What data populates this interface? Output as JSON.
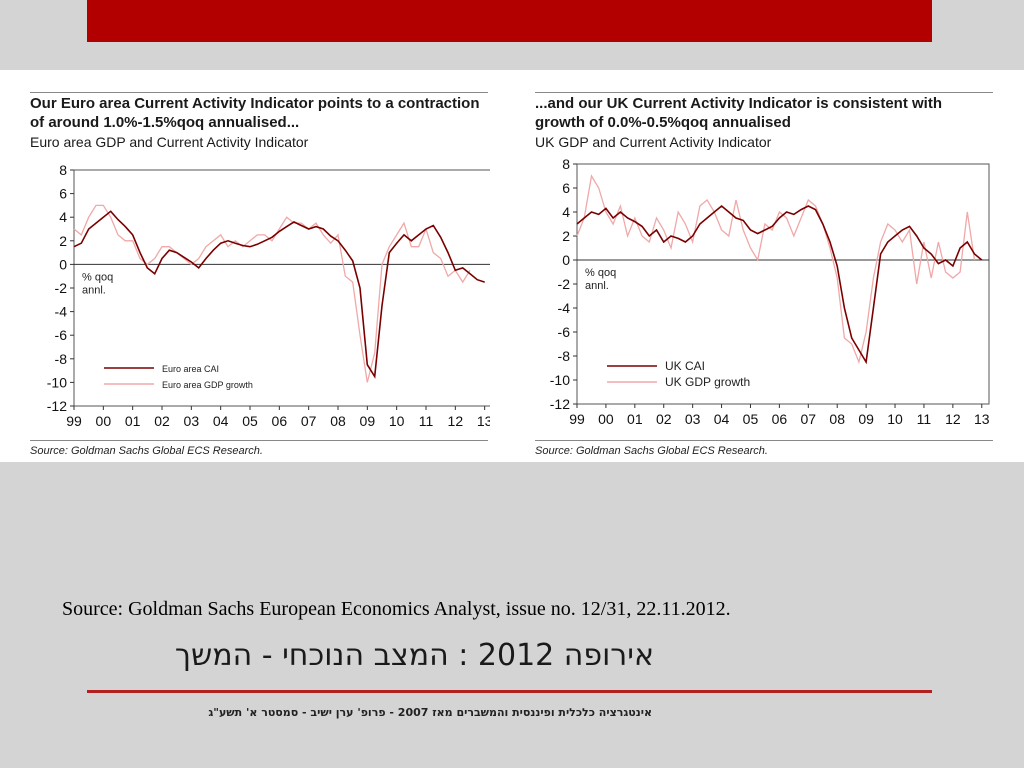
{
  "slide": {
    "source_text": "Source: Goldman Sachs European Economics Analyst, issue no. 12/31, 22.11.2012.",
    "title": "אירופה 2012 : המצב הנוכחי - המשך",
    "footer": "אינטגרציה כלכלית ופיננסית והמשברים מאז 2007 - פרופ' ערן ישיב - סמסטר א' תשע\"ג",
    "colors": {
      "top_bar": "#b20000",
      "rule": "#b22020",
      "cai_line": "#7a0000",
      "gdp_line": "#f0a8a8"
    }
  },
  "chart_data": [
    {
      "type": "line",
      "title": "Our Euro area Current Activity Indicator points to a contraction of around 1.0%-1.5%qoq annualised...",
      "subtitle": "Euro area GDP and Current Activity Indicator",
      "ylabel": "% qoq annl.",
      "xlabel": "",
      "ylim": [
        -12,
        8
      ],
      "yticks": [
        8,
        6,
        4,
        2,
        0,
        -2,
        -4,
        -6,
        -8,
        -10,
        -12
      ],
      "x_ticks": [
        "99",
        "00",
        "01",
        "02",
        "03",
        "04",
        "05",
        "06",
        "07",
        "08",
        "09",
        "10",
        "11",
        "12",
        "13"
      ],
      "source": "Source: Goldman Sachs Global ECS Research.",
      "legend_position": "bottom-left",
      "series": [
        {
          "name": "Euro area CAI",
          "x": [
            1999,
            1999.25,
            1999.5,
            1999.75,
            2000,
            2000.25,
            2000.5,
            2000.75,
            2001,
            2001.25,
            2001.5,
            2001.75,
            2002,
            2002.25,
            2002.5,
            2002.75,
            2003,
            2003.25,
            2003.5,
            2003.75,
            2004,
            2004.25,
            2004.5,
            2004.75,
            2005,
            2005.25,
            2005.5,
            2005.75,
            2006,
            2006.25,
            2006.5,
            2006.75,
            2007,
            2007.25,
            2007.5,
            2007.75,
            2008,
            2008.25,
            2008.5,
            2008.75,
            2009,
            2009.25,
            2009.5,
            2009.75,
            2010,
            2010.25,
            2010.5,
            2010.75,
            2011,
            2011.25,
            2011.5,
            2011.75,
            2012,
            2012.25,
            2012.5,
            2012.75,
            2013
          ],
          "y": [
            1.5,
            1.8,
            3.0,
            3.5,
            4.0,
            4.5,
            3.8,
            3.2,
            2.5,
            1.0,
            -0.3,
            -0.8,
            0.5,
            1.2,
            1.0,
            0.6,
            0.2,
            -0.3,
            0.5,
            1.2,
            1.8,
            2.0,
            1.8,
            1.6,
            1.5,
            1.7,
            2.0,
            2.3,
            2.8,
            3.2,
            3.6,
            3.3,
            3.0,
            3.2,
            3.0,
            2.4,
            2.0,
            1.2,
            0.3,
            -2.0,
            -8.5,
            -9.5,
            -3.5,
            1.0,
            1.8,
            2.5,
            2.0,
            2.5,
            3.0,
            3.3,
            2.3,
            1.0,
            -0.5,
            -0.3,
            -0.8,
            -1.3,
            -1.5
          ]
        },
        {
          "name": "Euro area GDP growth",
          "x": [
            1999,
            1999.25,
            1999.5,
            1999.75,
            2000,
            2000.25,
            2000.5,
            2000.75,
            2001,
            2001.25,
            2001.5,
            2001.75,
            2002,
            2002.25,
            2002.5,
            2002.75,
            2003,
            2003.25,
            2003.5,
            2003.75,
            2004,
            2004.25,
            2004.5,
            2004.75,
            2005,
            2005.25,
            2005.5,
            2005.75,
            2006,
            2006.25,
            2006.5,
            2006.75,
            2007,
            2007.25,
            2007.5,
            2007.75,
            2008,
            2008.25,
            2008.5,
            2008.75,
            2009,
            2009.25,
            2009.5,
            2009.75,
            2010,
            2010.25,
            2010.5,
            2010.75,
            2011,
            2011.25,
            2011.5,
            2011.75,
            2012,
            2012.25,
            2012.5
          ],
          "y": [
            3.0,
            2.5,
            4.0,
            5.0,
            5.0,
            4.0,
            2.5,
            2.0,
            2.0,
            0.5,
            0.0,
            0.5,
            1.5,
            1.5,
            1.0,
            0.5,
            0.0,
            0.5,
            1.5,
            2.0,
            2.5,
            1.5,
            2.0,
            1.5,
            2.0,
            2.5,
            2.5,
            2.0,
            3.0,
            4.0,
            3.5,
            3.5,
            3.0,
            3.5,
            2.5,
            1.8,
            2.5,
            -1.0,
            -1.5,
            -6.0,
            -10.0,
            -7.5,
            0.0,
            1.5,
            2.5,
            3.5,
            1.5,
            1.5,
            3.0,
            1.0,
            0.5,
            -1.0,
            -0.5,
            -1.5,
            -0.5
          ]
        }
      ]
    },
    {
      "type": "line",
      "title": "...and our UK Current Activity Indicator is consistent with growth of 0.0%-0.5%qoq annualised",
      "subtitle": "UK GDP and Current Activity Indicator",
      "ylabel": "% qoq annl.",
      "xlabel": "",
      "ylim": [
        -12,
        8
      ],
      "yticks": [
        8,
        6,
        4,
        2,
        0,
        -2,
        -4,
        -6,
        -8,
        -10,
        -12
      ],
      "x_ticks": [
        "99",
        "00",
        "01",
        "02",
        "03",
        "04",
        "05",
        "06",
        "07",
        "08",
        "09",
        "10",
        "11",
        "12",
        "13"
      ],
      "source": "Source: Goldman Sachs Global ECS Research.",
      "legend_position": "bottom-left",
      "series": [
        {
          "name": "UK CAI",
          "x": [
            1999,
            1999.25,
            1999.5,
            1999.75,
            2000,
            2000.25,
            2000.5,
            2000.75,
            2001,
            2001.25,
            2001.5,
            2001.75,
            2002,
            2002.25,
            2002.5,
            2002.75,
            2003,
            2003.25,
            2003.5,
            2003.75,
            2004,
            2004.25,
            2004.5,
            2004.75,
            2005,
            2005.25,
            2005.5,
            2005.75,
            2006,
            2006.25,
            2006.5,
            2006.75,
            2007,
            2007.25,
            2007.5,
            2007.75,
            2008,
            2008.25,
            2008.5,
            2008.75,
            2009,
            2009.25,
            2009.5,
            2009.75,
            2010,
            2010.25,
            2010.5,
            2010.75,
            2011,
            2011.25,
            2011.5,
            2011.75,
            2012,
            2012.25,
            2012.5,
            2012.75,
            2013
          ],
          "y": [
            3.0,
            3.5,
            4.0,
            3.8,
            4.3,
            3.5,
            4.0,
            3.5,
            3.2,
            2.8,
            2.0,
            2.5,
            1.5,
            2.0,
            1.8,
            1.5,
            2.0,
            3.0,
            3.5,
            4.0,
            4.5,
            4.0,
            3.5,
            3.3,
            2.5,
            2.2,
            2.5,
            2.8,
            3.5,
            4.0,
            3.8,
            4.2,
            4.5,
            4.2,
            3.0,
            1.5,
            -0.5,
            -4.0,
            -6.5,
            -7.5,
            -8.5,
            -4.0,
            0.5,
            1.5,
            2.0,
            2.5,
            2.8,
            2.0,
            1.0,
            0.5,
            -0.3,
            0.0,
            -0.5,
            1.0,
            1.5,
            0.5,
            0.0
          ]
        },
        {
          "name": "UK GDP growth",
          "x": [
            1999,
            1999.25,
            1999.5,
            1999.75,
            2000,
            2000.25,
            2000.5,
            2000.75,
            2001,
            2001.25,
            2001.5,
            2001.75,
            2002,
            2002.25,
            2002.5,
            2002.75,
            2003,
            2003.25,
            2003.5,
            2003.75,
            2004,
            2004.25,
            2004.5,
            2004.75,
            2005,
            2005.25,
            2005.5,
            2005.75,
            2006,
            2006.25,
            2006.5,
            2006.75,
            2007,
            2007.25,
            2007.5,
            2007.75,
            2008,
            2008.25,
            2008.5,
            2008.75,
            2009,
            2009.25,
            2009.5,
            2009.75,
            2010,
            2010.25,
            2010.5,
            2010.75,
            2011,
            2011.25,
            2011.5,
            2011.75,
            2012,
            2012.25,
            2012.5,
            2012.75
          ],
          "y": [
            2.0,
            3.5,
            7.0,
            6.0,
            4.0,
            3.0,
            4.5,
            2.0,
            3.5,
            2.0,
            1.5,
            3.5,
            2.5,
            1.0,
            4.0,
            3.0,
            1.5,
            4.5,
            5.0,
            4.0,
            2.5,
            2.0,
            5.0,
            2.5,
            1.0,
            0.0,
            3.0,
            2.5,
            4.0,
            3.5,
            2.0,
            3.5,
            5.0,
            4.5,
            3.0,
            1.0,
            -1.5,
            -6.5,
            -7.0,
            -8.5,
            -6.0,
            -1.5,
            1.5,
            3.0,
            2.5,
            1.5,
            2.5,
            -2.0,
            1.5,
            -1.5,
            1.5,
            -1.0,
            -1.5,
            -1.0,
            4.0,
            0.0
          ]
        }
      ]
    }
  ]
}
